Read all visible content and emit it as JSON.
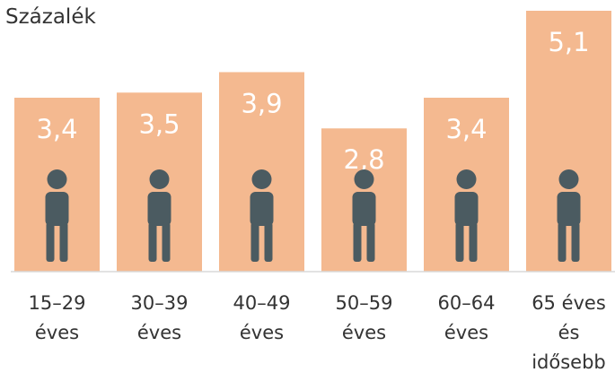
{
  "chart_data": {
    "type": "bar",
    "title": "Százalék",
    "categories": [
      "15–29 éves",
      "30–39 éves",
      "40–49 éves",
      "50–59 éves",
      "60–64 éves",
      "65 éves és idősebb"
    ],
    "values": [
      3.4,
      3.5,
      3.9,
      2.8,
      3.4,
      5.1
    ],
    "value_labels": [
      "3,4",
      "3,5",
      "3,9",
      "2,8",
      "3,4",
      "5,1"
    ],
    "color": "#f4b990",
    "ylim": [
      0,
      5.1
    ]
  }
}
